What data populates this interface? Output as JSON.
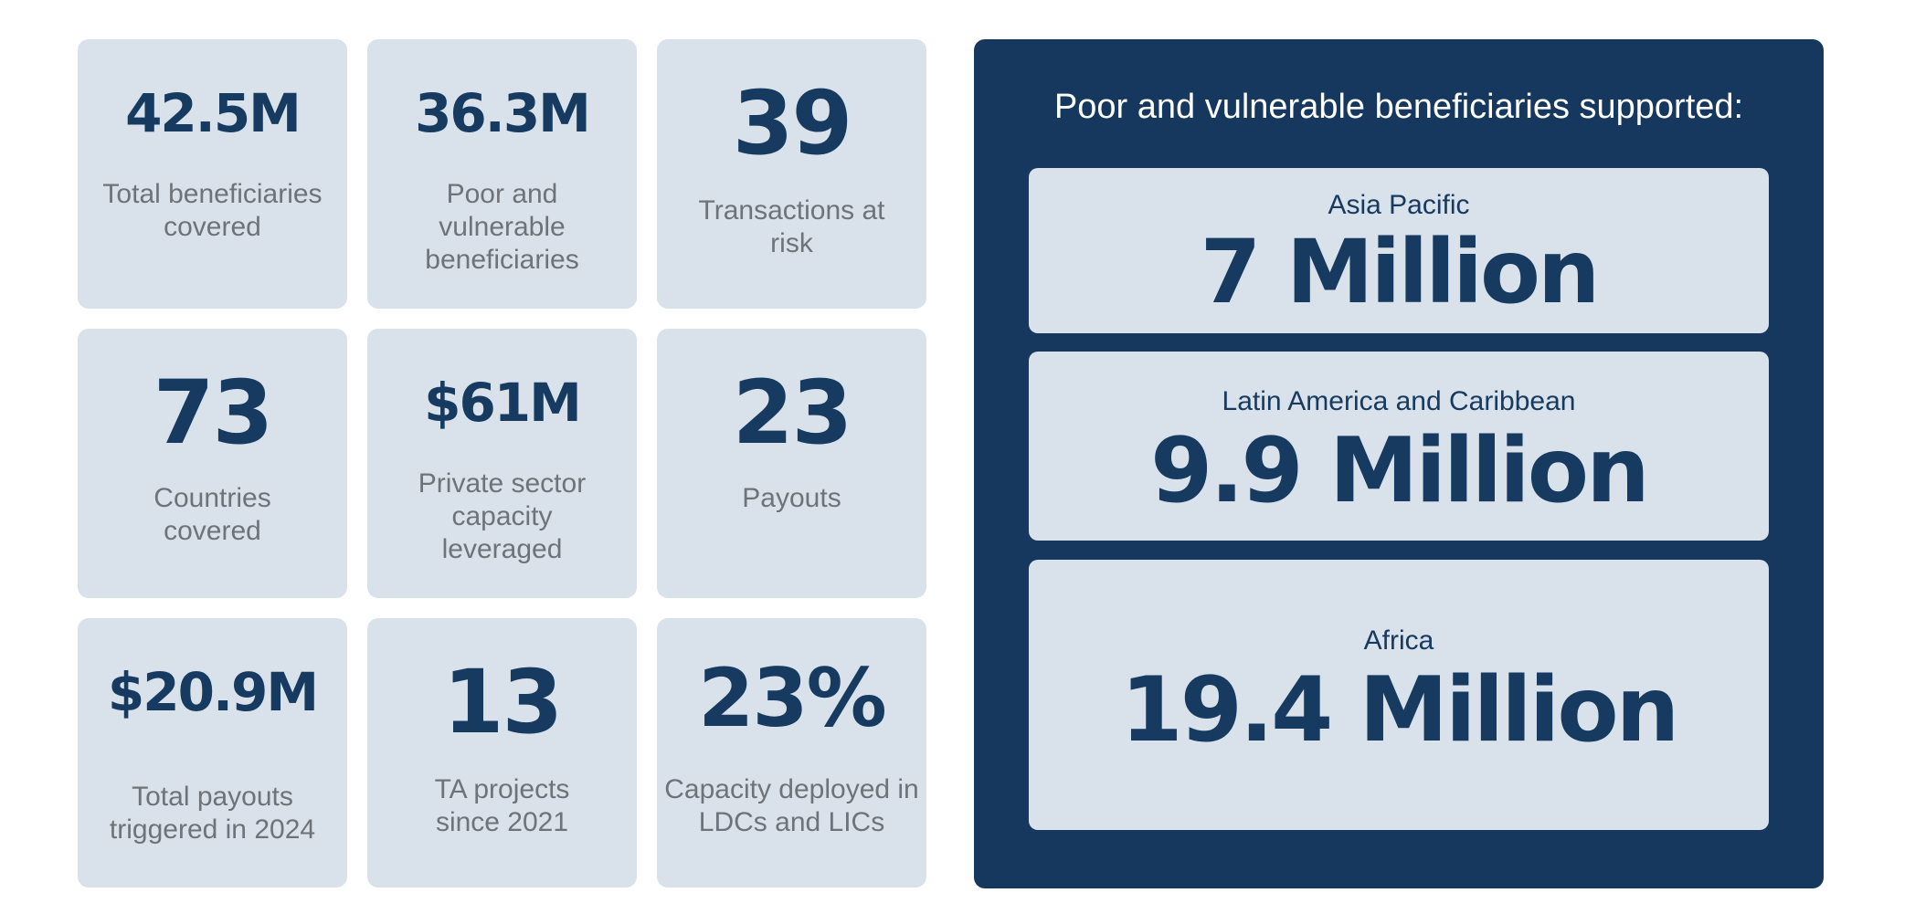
{
  "stats": [
    {
      "value": "42.5M",
      "label": "Total beneficiaries covered"
    },
    {
      "value": "36.3M",
      "label": "Poor and vulnerable beneficiaries"
    },
    {
      "value": "39",
      "label": "Transactions at risk"
    },
    {
      "value": "73",
      "label": "Countries covered"
    },
    {
      "value": "$61M",
      "label": "Private sector capacity leveraged"
    },
    {
      "value": "23",
      "label": "Payouts"
    },
    {
      "value": "$20.9M",
      "label": "Total payouts triggered in 2024"
    },
    {
      "value": "13",
      "label": "TA projects since 2021"
    },
    {
      "value": "23%",
      "label": "Capacity deployed in LDCs and LICs"
    }
  ],
  "panel": {
    "title": "Poor and vulnerable beneficiaries supported:",
    "regions": [
      {
        "name": "Asia Pacific",
        "value": "7 Million"
      },
      {
        "name": "Latin America and Caribbean",
        "value": "9.9 Million"
      },
      {
        "name": "Africa",
        "value": "19.4 Million"
      }
    ]
  },
  "colors": {
    "navy": "#16385e",
    "card_bg": "#d9e1ea",
    "label_grey": "#6e7379",
    "white": "#ffffff"
  }
}
